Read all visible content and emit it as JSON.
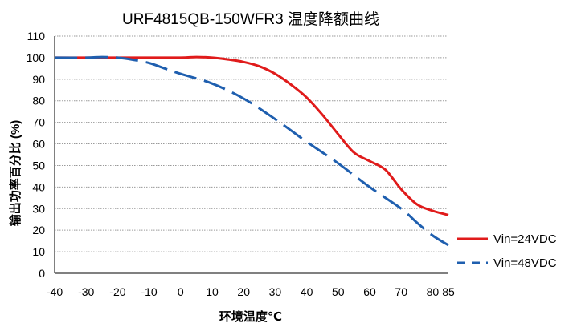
{
  "chart_data": {
    "type": "line",
    "title": "URF4815QB-150WFR3 温度降额曲线",
    "xlabel": "环境温度℃",
    "ylabel": "输出功率百分比 (%)",
    "xlim": [
      -40,
      85
    ],
    "ylim": [
      0,
      110
    ],
    "xticks": [
      "-40",
      "-30",
      "-20",
      "-10",
      "0",
      "10",
      "20",
      "30",
      "40",
      "50",
      "60",
      "70",
      "80",
      "85"
    ],
    "yticks": [
      "0",
      "10",
      "20",
      "30",
      "40",
      "50",
      "60",
      "70",
      "80",
      "90",
      "100",
      "110"
    ],
    "grid": "horizontal dotted",
    "legend_position": "bottom-right",
    "series": [
      {
        "name": "Vin=24VDC",
        "color": "#e01b1b",
        "style": "solid",
        "x": [
          -40,
          -30,
          -20,
          -10,
          0,
          5,
          10,
          15,
          20,
          25,
          30,
          35,
          40,
          45,
          50,
          55,
          60,
          65,
          70,
          75,
          80,
          85
        ],
        "y": [
          100,
          100,
          100,
          100,
          100,
          100.3,
          100,
          99.2,
          98,
          96,
          92.5,
          87.5,
          81.5,
          73.5,
          64.5,
          56,
          52,
          48,
          39,
          32,
          29,
          27
        ]
      },
      {
        "name": "Vin=48VDC",
        "color": "#1f5faf",
        "style": "dashed",
        "x": [
          -40,
          -30,
          -25,
          -20,
          -15,
          -10,
          -5,
          0,
          10,
          20,
          30,
          40,
          50,
          60,
          70,
          75,
          80,
          85
        ],
        "y": [
          100,
          100,
          100.3,
          100,
          99,
          97.5,
          95,
          92.5,
          88,
          81,
          71.5,
          61,
          51,
          40,
          30,
          23.5,
          17.5,
          13
        ]
      }
    ]
  }
}
